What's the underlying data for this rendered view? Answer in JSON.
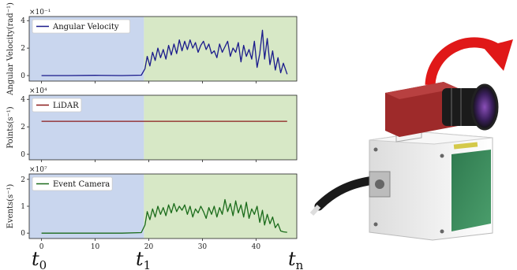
{
  "chart_data": [
    {
      "type": "line",
      "ylabel": "Angular Velocity(rad⁻¹)",
      "y_multiplier": "×10⁻¹",
      "ylim": [
        -0.4,
        4.3
      ],
      "yticks": [
        0,
        2,
        4
      ],
      "xlim": [
        -2.3,
        47.6
      ],
      "xticks": [],
      "legend": "top-left",
      "series": [
        {
          "name": "Angular Velocity",
          "color": "#1a1a8c",
          "x": [
            0,
            5,
            10,
            15,
            18.6,
            19.3,
            19.7,
            20.2,
            20.7,
            21.2,
            21.7,
            22.2,
            22.7,
            23.2,
            23.7,
            24.2,
            24.7,
            25.2,
            25.7,
            26.2,
            26.7,
            27.2,
            27.7,
            28.2,
            28.7,
            29.2,
            29.7,
            30.2,
            30.7,
            31.2,
            31.7,
            32.2,
            32.7,
            33.2,
            33.7,
            34.2,
            34.7,
            35.2,
            35.7,
            36.2,
            36.7,
            37.2,
            37.7,
            38.2,
            38.7,
            39.2,
            39.7,
            40.2,
            40.7,
            41.2,
            41.6,
            42.1,
            42.6,
            43.1,
            43.6,
            44.1,
            44.6,
            45.1,
            45.8
          ],
          "y": [
            0,
            0,
            0.02,
            0,
            0.03,
            0.5,
            1.4,
            0.7,
            1.7,
            1.1,
            2.0,
            1.3,
            1.9,
            1.2,
            2.2,
            1.5,
            2.3,
            1.6,
            2.6,
            1.8,
            2.5,
            1.9,
            2.6,
            2.0,
            2.4,
            1.7,
            2.2,
            2.5,
            1.9,
            2.3,
            1.6,
            1.8,
            1.3,
            2.3,
            1.7,
            2.1,
            2.5,
            1.4,
            2.0,
            1.7,
            2.4,
            1.0,
            2.2,
            1.4,
            1.9,
            1.2,
            2.5,
            0.6,
            1.6,
            3.3,
            1.2,
            2.7,
            0.8,
            1.8,
            0.4,
            1.3,
            0.2,
            0.9,
            0.1
          ]
        }
      ]
    },
    {
      "type": "line",
      "ylabel": "Points(s⁻¹)",
      "y_multiplier": "×10⁴",
      "ylim": [
        -0.4,
        4.3
      ],
      "yticks": [
        0,
        2,
        4
      ],
      "xlim": [
        -2.3,
        47.6
      ],
      "xticks": [],
      "legend": "top-left",
      "series": [
        {
          "name": "LiDAR",
          "color": "#8b1a1a",
          "x": [
            0,
            45.8
          ],
          "y": [
            2.4,
            2.4
          ]
        }
      ]
    },
    {
      "type": "line",
      "ylabel": "Events(s⁻¹)",
      "y_multiplier": "×10⁷",
      "ylim": [
        -0.2,
        2.2
      ],
      "yticks": [
        0,
        1,
        2
      ],
      "xlim": [
        -2.3,
        47.6
      ],
      "xticks": [
        0,
        10,
        20,
        30,
        40
      ],
      "legend": "top-left",
      "series": [
        {
          "name": "Event Camera",
          "color": "#1a6b1a",
          "x": [
            0,
            5,
            10,
            15,
            18.6,
            19.3,
            19.7,
            20.2,
            20.7,
            21.2,
            21.7,
            22.2,
            22.7,
            23.2,
            23.7,
            24.2,
            24.7,
            25.2,
            25.7,
            26.2,
            26.7,
            27.2,
            27.7,
            28.2,
            28.7,
            29.2,
            29.7,
            30.2,
            30.7,
            31.2,
            31.7,
            32.2,
            32.7,
            33.2,
            33.7,
            34.2,
            34.7,
            35.2,
            35.7,
            36.2,
            36.7,
            37.2,
            37.7,
            38.2,
            38.7,
            39.2,
            39.7,
            40.2,
            40.7,
            41.2,
            41.6,
            42.1,
            42.6,
            43.1,
            43.6,
            44.1,
            44.6,
            45.1,
            45.8
          ],
          "y": [
            0,
            0,
            0,
            0,
            0.02,
            0.3,
            0.8,
            0.5,
            0.9,
            0.6,
            1.0,
            0.7,
            0.95,
            0.65,
            1.05,
            0.75,
            1.1,
            0.8,
            1.0,
            0.85,
            1.05,
            0.7,
            1.0,
            0.6,
            0.9,
            0.75,
            1.0,
            0.8,
            0.55,
            0.95,
            0.7,
            1.0,
            0.6,
            0.95,
            0.7,
            1.25,
            0.8,
            1.1,
            0.65,
            1.2,
            0.75,
            1.05,
            0.6,
            1.15,
            0.55,
            0.9,
            0.7,
            1.0,
            0.4,
            0.85,
            0.3,
            0.7,
            0.35,
            0.6,
            0.2,
            0.35,
            0.08,
            0.05,
            0.03
          ]
        }
      ]
    }
  ],
  "regions": [
    {
      "from": -2.3,
      "to": 19.1,
      "color": "#c9d6ee"
    },
    {
      "from": 19.1,
      "to": 47.6,
      "color": "#d7e8c6"
    }
  ],
  "time_markers": [
    {
      "base": "t",
      "sub": "0"
    },
    {
      "base": "t",
      "sub": "1"
    },
    {
      "base": "t",
      "sub": "n"
    }
  ],
  "colors": {
    "arrow": "#e01818",
    "device_body": "#f2f2f2",
    "camera_red": "#9e2a2a",
    "lens": "#1b1b1b",
    "window_green": "#3d8a5c",
    "label_strip": "#d4c94a"
  }
}
